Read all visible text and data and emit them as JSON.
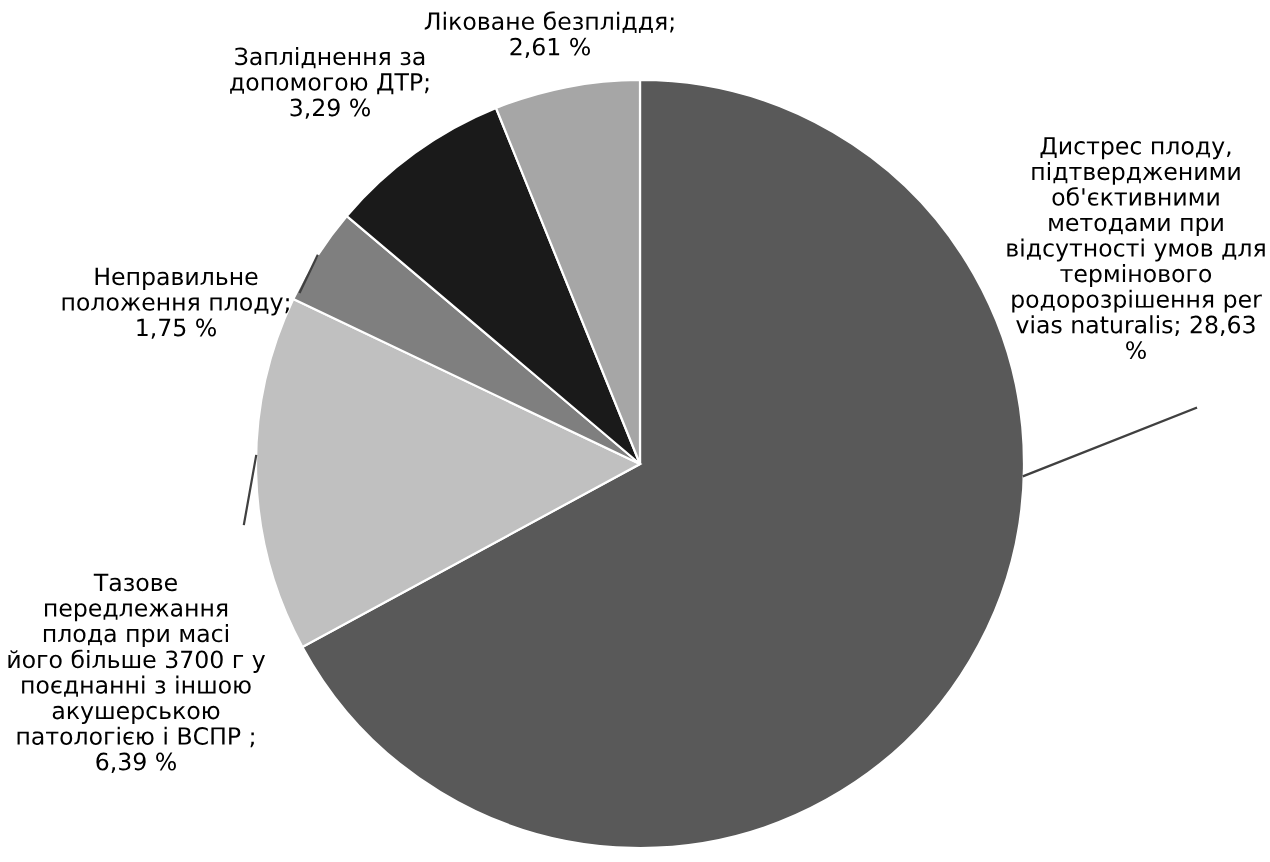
{
  "chart_data": {
    "type": "pie",
    "categories": [
      "Дистрес плоду,\nпідтвердженими\nоб'єктивними\nметодами при\nвідсутності умов для\nтермінового\nродорозрішення per\nvias naturalis; 28,63\n%",
      "Тазове\nпередлежання\nплода при масі\nйого більше 3700 г у\nпоєднанні з іншою\nакушерською\nпатологією і ВСПР ;\n6,39 %",
      "Неправильне\nположення плоду;\n1,75 %",
      "Запліднення за\nдопомогою ДТР;\n3,29 %",
      "Ліковане безпліддя;\n2,61 %"
    ],
    "values": [
      28.63,
      6.39,
      1.75,
      3.29,
      2.61
    ],
    "colors": [
      "#595959",
      "#c0c0c0",
      "#7f7f7f",
      "#1a1a1a",
      "#a6a6a6"
    ],
    "legend": false
  }
}
